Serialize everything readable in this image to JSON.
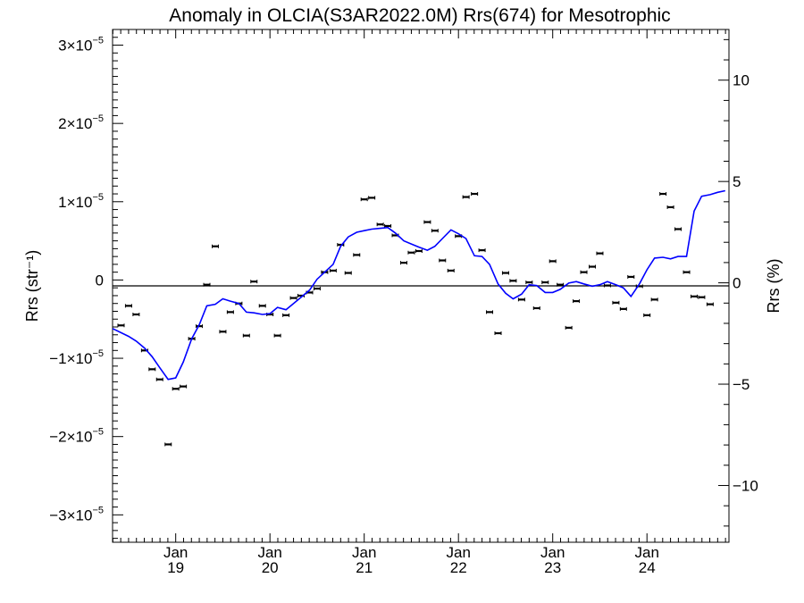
{
  "chart_data": {
    "type": "scatter",
    "title": "Anomaly in OLCIA(S3AR2022.0M) Rrs(674) for Mesotrophic",
    "ylabel_left": "Rrs (str⁻¹)",
    "ylabel_right": "Rrs (%)",
    "ylim_left": [
      -3.35e-05,
      3.2e-05
    ],
    "ylim_right": [
      -12.8,
      12.5
    ],
    "xlim": [
      2018.33,
      2024.87
    ],
    "x_ticks": [
      {
        "x": 2019.0,
        "month": "Jan",
        "year": "19"
      },
      {
        "x": 2020.0,
        "month": "Jan",
        "year": "20"
      },
      {
        "x": 2021.0,
        "month": "Jan",
        "year": "21"
      },
      {
        "x": 2022.0,
        "month": "Jan",
        "year": "22"
      },
      {
        "x": 2023.0,
        "month": "Jan",
        "year": "23"
      },
      {
        "x": 2024.0,
        "month": "Jan",
        "year": "24"
      }
    ],
    "y_ticks_left": [
      {
        "v": 3e-05,
        "mant": "3×10",
        "exp": "−5"
      },
      {
        "v": 2e-05,
        "mant": "2×10",
        "exp": "−5"
      },
      {
        "v": 1e-05,
        "mant": "1×10",
        "exp": "−5"
      },
      {
        "v": 0,
        "mant": "0",
        "exp": ""
      },
      {
        "v": -1e-05,
        "mant": "−1×10",
        "exp": "−5"
      },
      {
        "v": -2e-05,
        "mant": "−2×10",
        "exp": "−5"
      },
      {
        "v": -3e-05,
        "mant": "−3×10",
        "exp": "−5"
      }
    ],
    "y_ticks_right": [
      {
        "v": 10,
        "label": "10"
      },
      {
        "v": 5,
        "label": "5"
      },
      {
        "v": 0,
        "label": "0"
      },
      {
        "v": -5,
        "label": "−5"
      },
      {
        "v": -10,
        "label": "−10"
      }
    ],
    "series": [
      {
        "kind": "points",
        "color": "#000000",
        "points": [
          [
            2018.42,
            -5.8e-06
          ],
          [
            2018.5,
            -3.3e-06
          ],
          [
            2018.58,
            -4.4e-06
          ],
          [
            2018.67,
            -9e-06
          ],
          [
            2018.75,
            -1.14e-05
          ],
          [
            2018.83,
            -1.27e-05
          ],
          [
            2018.92,
            -2.1e-05
          ],
          [
            2019.0,
            -1.39e-05
          ],
          [
            2019.08,
            -1.36e-05
          ],
          [
            2019.17,
            -7.5e-06
          ],
          [
            2019.25,
            -5.9e-06
          ],
          [
            2019.33,
            -6e-07
          ],
          [
            2019.42,
            4.3e-06
          ],
          [
            2019.5,
            -6.6e-06
          ],
          [
            2019.58,
            -4.1e-06
          ],
          [
            2019.67,
            -3e-06
          ],
          [
            2019.75,
            -7.1e-06
          ],
          [
            2019.83,
            -2e-07
          ],
          [
            2019.92,
            -3.3e-06
          ],
          [
            2020.0,
            -4.4e-06
          ],
          [
            2020.08,
            -7.1e-06
          ],
          [
            2020.17,
            -4.5e-06
          ],
          [
            2020.25,
            -2.3e-06
          ],
          [
            2020.33,
            -2e-06
          ],
          [
            2020.42,
            -1.6e-06
          ],
          [
            2020.5,
            -1.1e-06
          ],
          [
            2020.58,
            1e-06
          ],
          [
            2020.67,
            1.2e-06
          ],
          [
            2020.75,
            4.5e-06
          ],
          [
            2020.83,
            9e-07
          ],
          [
            2020.92,
            3.2e-06
          ],
          [
            2021.0,
            1.03e-05
          ],
          [
            2021.08,
            1.05e-05
          ],
          [
            2021.17,
            7.1e-06
          ],
          [
            2021.25,
            6.9e-06
          ],
          [
            2021.33,
            5.7e-06
          ],
          [
            2021.42,
            2.2e-06
          ],
          [
            2021.5,
            3.5e-06
          ],
          [
            2021.58,
            3.7e-06
          ],
          [
            2021.67,
            7.4e-06
          ],
          [
            2021.75,
            6.3e-06
          ],
          [
            2021.83,
            2.5e-06
          ],
          [
            2021.92,
            1.2e-06
          ],
          [
            2022.0,
            5.6e-06
          ],
          [
            2022.08,
            1.06e-05
          ],
          [
            2022.17,
            1.1e-05
          ],
          [
            2022.25,
            3.8e-06
          ],
          [
            2022.33,
            -4.1e-06
          ],
          [
            2022.42,
            -6.8e-06
          ],
          [
            2022.5,
            9e-07
          ],
          [
            2022.58,
            -1e-07
          ],
          [
            2022.67,
            -2.5e-06
          ],
          [
            2022.75,
            -3e-07
          ],
          [
            2022.83,
            -3.6e-06
          ],
          [
            2022.92,
            -3e-07
          ],
          [
            2023.0,
            2.4e-06
          ],
          [
            2023.08,
            -6e-07
          ],
          [
            2023.17,
            -6.1e-06
          ],
          [
            2023.25,
            -2.7e-06
          ],
          [
            2023.33,
            1e-06
          ],
          [
            2023.42,
            1.7e-06
          ],
          [
            2023.5,
            3.4e-06
          ],
          [
            2023.58,
            -7e-07
          ],
          [
            2023.67,
            -2.9e-06
          ],
          [
            2023.75,
            -3.7e-06
          ],
          [
            2023.83,
            4e-07
          ],
          [
            2023.92,
            -8e-07
          ],
          [
            2024.0,
            -4.5e-06
          ],
          [
            2024.08,
            -2.5e-06
          ],
          [
            2024.17,
            1.1e-05
          ],
          [
            2024.25,
            9.3e-06
          ],
          [
            2024.33,
            6.5e-06
          ],
          [
            2024.42,
            1e-06
          ],
          [
            2024.5,
            -2.1e-06
          ],
          [
            2024.58,
            -2.2e-06
          ],
          [
            2024.67,
            -3.1e-06
          ]
        ]
      },
      {
        "kind": "line",
        "color": "#0000ff",
        "points": [
          [
            2018.33,
            -6.2e-06
          ],
          [
            2018.5,
            -7.2e-06
          ],
          [
            2018.58,
            -7.8e-06
          ],
          [
            2018.67,
            -8.7e-06
          ],
          [
            2018.75,
            -9.8e-06
          ],
          [
            2018.83,
            -1.12e-05
          ],
          [
            2018.92,
            -1.27e-05
          ],
          [
            2019.0,
            -1.25e-05
          ],
          [
            2019.08,
            -1.05e-05
          ],
          [
            2019.17,
            -7.5e-06
          ],
          [
            2019.25,
            -5.7e-06
          ],
          [
            2019.33,
            -3.3e-06
          ],
          [
            2019.42,
            -3.1e-06
          ],
          [
            2019.5,
            -2.4e-06
          ],
          [
            2019.58,
            -2.7e-06
          ],
          [
            2019.67,
            -3e-06
          ],
          [
            2019.75,
            -4.1e-06
          ],
          [
            2019.83,
            -4.2e-06
          ],
          [
            2019.92,
            -4.4e-06
          ],
          [
            2020.0,
            -4.3e-06
          ],
          [
            2020.08,
            -3.5e-06
          ],
          [
            2020.17,
            -3.8e-06
          ],
          [
            2020.25,
            -3e-06
          ],
          [
            2020.33,
            -2.2e-06
          ],
          [
            2020.42,
            -1.3e-06
          ],
          [
            2020.5,
            1e-07
          ],
          [
            2020.58,
            1e-06
          ],
          [
            2020.67,
            2e-06
          ],
          [
            2020.75,
            4.3e-06
          ],
          [
            2020.83,
            5.5e-06
          ],
          [
            2020.92,
            6.1e-06
          ],
          [
            2021.0,
            6.3e-06
          ],
          [
            2021.08,
            6.5e-06
          ],
          [
            2021.17,
            6.6e-06
          ],
          [
            2021.25,
            6.7e-06
          ],
          [
            2021.33,
            6e-06
          ],
          [
            2021.42,
            5e-06
          ],
          [
            2021.5,
            4.6e-06
          ],
          [
            2021.58,
            4.2e-06
          ],
          [
            2021.67,
            3.8e-06
          ],
          [
            2021.75,
            4.3e-06
          ],
          [
            2021.83,
            5.3e-06
          ],
          [
            2021.92,
            6.4e-06
          ],
          [
            2022.0,
            5.9e-06
          ],
          [
            2022.08,
            5.3e-06
          ],
          [
            2022.17,
            3.1e-06
          ],
          [
            2022.25,
            3e-06
          ],
          [
            2022.33,
            2e-06
          ],
          [
            2022.42,
            -5e-07
          ],
          [
            2022.5,
            -1.7e-06
          ],
          [
            2022.58,
            -2.4e-06
          ],
          [
            2022.67,
            -1.8e-06
          ],
          [
            2022.75,
            -6e-07
          ],
          [
            2022.83,
            -7e-07
          ],
          [
            2022.92,
            -1.6e-06
          ],
          [
            2023.0,
            -1.6e-06
          ],
          [
            2023.08,
            -1.2e-06
          ],
          [
            2023.17,
            -4e-07
          ],
          [
            2023.25,
            -2e-07
          ],
          [
            2023.33,
            -5e-07
          ],
          [
            2023.42,
            -8e-07
          ],
          [
            2023.5,
            -6e-07
          ],
          [
            2023.58,
            -2e-07
          ],
          [
            2023.67,
            -6e-07
          ],
          [
            2023.75,
            -1e-06
          ],
          [
            2023.83,
            -2.1e-06
          ],
          [
            2023.92,
            -5e-07
          ],
          [
            2024.0,
            1.3e-06
          ],
          [
            2024.08,
            2.8e-06
          ],
          [
            2024.17,
            2.9e-06
          ],
          [
            2024.25,
            2.7e-06
          ],
          [
            2024.33,
            3e-06
          ],
          [
            2024.42,
            3e-06
          ],
          [
            2024.5,
            8.8e-06
          ],
          [
            2024.58,
            1.07e-05
          ],
          [
            2024.67,
            1.09e-05
          ],
          [
            2024.75,
            1.12e-05
          ],
          [
            2024.83,
            1.14e-05
          ]
        ]
      }
    ]
  }
}
